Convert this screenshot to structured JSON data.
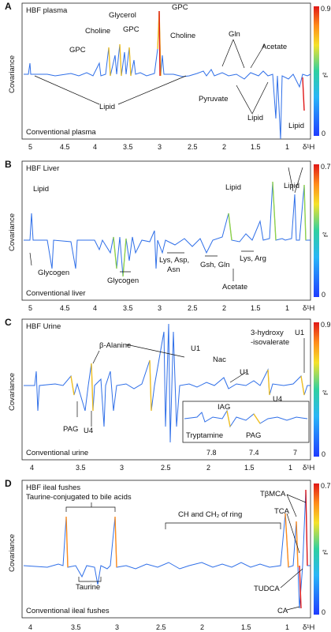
{
  "figure": {
    "colorbar_title": "r²",
    "axis_x_label": "δ¹H",
    "axis_y_label": "Covariance",
    "colors": {
      "low": "#1f3cff",
      "mid": "#2fd0a0",
      "yellow": "#f4e22a",
      "high": "#e01818"
    }
  },
  "panels": [
    {
      "letter": "A",
      "title": "HBF plasma",
      "subtitle": "Conventional plasma",
      "colorbar_max": "0.9",
      "colorbar_min": "0",
      "x_ticks": [
        "5",
        "4.5",
        "4",
        "3.5",
        "3",
        "2.5",
        "2",
        "1.5",
        "1"
      ],
      "annotations": [
        "GPC",
        "Choline",
        "Glycerol",
        "GPC",
        "GPC",
        "Choline",
        "Gln",
        "Acetate",
        "Lipid",
        "Pyruvate",
        "Lipid",
        "Lipid"
      ]
    },
    {
      "letter": "B",
      "title": "HBF Liver",
      "subtitle": "Conventional liver",
      "colorbar_max": "0.7",
      "colorbar_min": "0",
      "x_ticks": [
        "5",
        "4.5",
        "4",
        "3.5",
        "3",
        "2.5",
        "2",
        "1.5",
        "1"
      ],
      "annotations": [
        "Lipid",
        "Lipid",
        "Lipid",
        "Glycogen",
        "Glycogen",
        "Lys, Asp,",
        "Asn",
        "Gsh, Gln",
        "Lys, Arg",
        "Acetate"
      ]
    },
    {
      "letter": "C",
      "title": "HBF Urine",
      "subtitle": "Conventional urine",
      "colorbar_max": "0.9",
      "colorbar_min": "0",
      "x_ticks": [
        "4",
        "3.5",
        "3",
        "2.5",
        "2",
        "1.5",
        "1"
      ],
      "inset_ticks": [
        "7.8",
        "7.4",
        "7"
      ],
      "annotations": [
        "β-Alanine",
        "U1",
        "U1",
        "U1",
        "Nac",
        "3-hydroxy",
        "-isovalerate",
        "U4",
        "U4",
        "PAG",
        "IAG",
        "Tryptamine",
        "PAG"
      ]
    },
    {
      "letter": "D",
      "title": "HBF ileal fushes",
      "title2": "Taurine-conjugated to bile acids",
      "subtitle": "Conventional ileal fushes",
      "colorbar_max": "0.7",
      "colorbar_min": "0",
      "x_ticks": [
        "4",
        "3.5",
        "3",
        "2.5",
        "2",
        "1.5",
        "1"
      ],
      "annotations": [
        "TβMCA",
        "TCA",
        "CH and CH₂ of ring",
        "Taurine",
        "TUDCA",
        "CA"
      ]
    }
  ]
}
